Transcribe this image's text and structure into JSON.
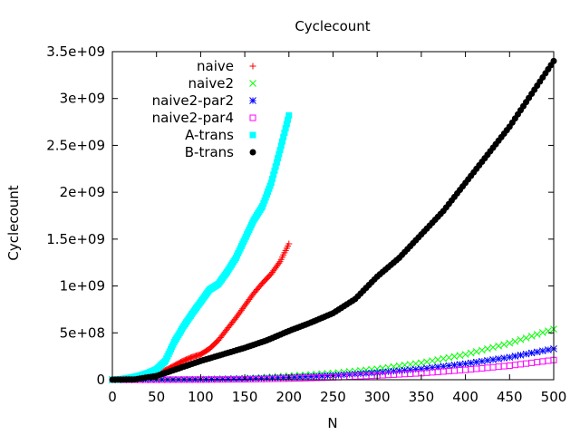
{
  "chart_data": {
    "type": "scatter",
    "title": "Cyclecount",
    "xlabel": "N",
    "ylabel": "Cyclecount",
    "xlim": [
      0,
      500
    ],
    "ylim": [
      0,
      3500000000
    ],
    "x_ticks": [
      0,
      50,
      100,
      150,
      200,
      250,
      300,
      350,
      400,
      450,
      500
    ],
    "x_tick_labels": [
      "0",
      "50",
      "100",
      "150",
      "200",
      "250",
      "300",
      "350",
      "400",
      "450",
      "500"
    ],
    "y_ticks": [
      0,
      500000000,
      1000000000,
      1500000000,
      2000000000,
      2500000000,
      3000000000,
      3500000000
    ],
    "y_tick_labels": [
      "0",
      "5e+08",
      "1e+09",
      "1.5e+09",
      "2e+09",
      "2.5e+09",
      "3e+09",
      "3.5e+09"
    ],
    "grid": false,
    "legend_position": "top-left",
    "series": [
      {
        "name": "naive",
        "color": "#ff0000",
        "marker": "plus",
        "x": [
          0,
          10,
          20,
          30,
          40,
          50,
          60,
          70,
          80,
          90,
          100,
          110,
          120,
          130,
          140,
          150,
          160,
          170,
          180,
          190,
          200
        ],
        "y": [
          0,
          1000000,
          5000000,
          15000000,
          35000000,
          60000000,
          100000000,
          150000000,
          200000000,
          240000000,
          270000000,
          330000000,
          420000000,
          540000000,
          660000000,
          790000000,
          920000000,
          1030000000,
          1130000000,
          1260000000,
          1450000000
        ]
      },
      {
        "name": "naive2",
        "color": "#00ff00",
        "marker": "cross",
        "x": [
          0,
          50,
          100,
          150,
          200,
          250,
          300,
          350,
          400,
          450,
          500
        ],
        "y": [
          0,
          1000000,
          5000000,
          15000000,
          40000000,
          70000000,
          115000000,
          180000000,
          270000000,
          390000000,
          540000000
        ]
      },
      {
        "name": "naive2-par2",
        "color": "#0000ff",
        "marker": "star",
        "x": [
          0,
          50,
          100,
          150,
          200,
          250,
          300,
          350,
          400,
          450,
          500
        ],
        "y": [
          0,
          500000,
          3000000,
          10000000,
          25000000,
          45000000,
          75000000,
          115000000,
          170000000,
          240000000,
          330000000
        ]
      },
      {
        "name": "naive2-par4",
        "color": "#ff00ff",
        "marker": "open-square",
        "x": [
          0,
          50,
          100,
          150,
          200,
          250,
          300,
          350,
          400,
          450,
          500
        ],
        "y": [
          0,
          300000,
          1500000,
          5000000,
          12000000,
          25000000,
          45000000,
          70000000,
          105000000,
          150000000,
          210000000
        ]
      },
      {
        "name": "A-trans",
        "color": "#00ffff",
        "marker": "filled-square",
        "x": [
          0,
          10,
          20,
          30,
          40,
          50,
          60,
          70,
          80,
          90,
          100,
          110,
          120,
          130,
          140,
          150,
          160,
          170,
          180,
          190,
          200
        ],
        "y": [
          0,
          5000000,
          20000000,
          40000000,
          70000000,
          110000000,
          200000000,
          400000000,
          560000000,
          700000000,
          830000000,
          960000000,
          1020000000,
          1150000000,
          1300000000,
          1500000000,
          1700000000,
          1850000000,
          2100000000,
          2450000000,
          2820000000
        ]
      },
      {
        "name": "B-trans",
        "color": "#000000",
        "marker": "filled-circle",
        "x": [
          0,
          25,
          50,
          75,
          100,
          125,
          150,
          175,
          200,
          225,
          250,
          275,
          300,
          325,
          350,
          375,
          400,
          425,
          450,
          475,
          500
        ],
        "y": [
          0,
          3000000,
          40000000,
          120000000,
          200000000,
          270000000,
          340000000,
          420000000,
          520000000,
          610000000,
          710000000,
          860000000,
          1100000000,
          1300000000,
          1550000000,
          1800000000,
          2100000000,
          2400000000,
          2700000000,
          3050000000,
          3400000000
        ]
      }
    ]
  }
}
